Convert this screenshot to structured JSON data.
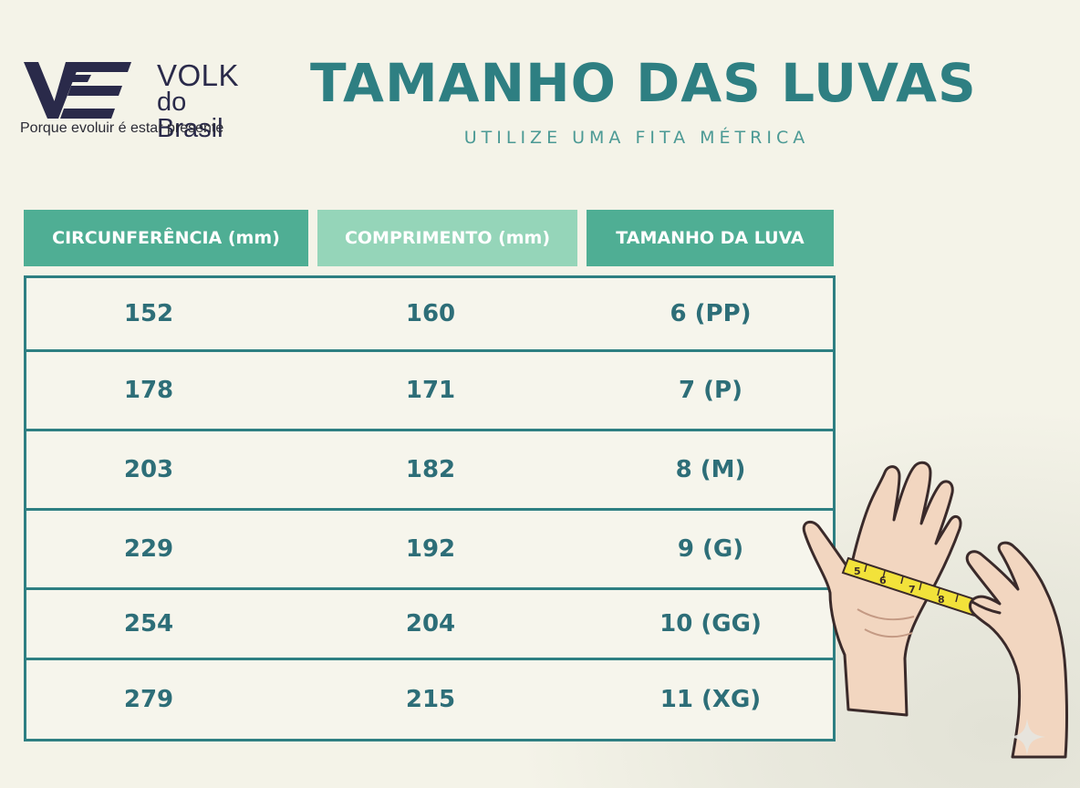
{
  "logo": {
    "brand": "VOLK",
    "sub": "do Brasil",
    "tagline": "Porque evoluir é estar presente",
    "colors": {
      "mark": "#2a2a4a"
    }
  },
  "header": {
    "title": "TAMANHO DAS LUVAS",
    "subtitle": "UTILIZE UMA FITA MÉTRICA"
  },
  "colors": {
    "title": "#2e7f82",
    "header_dark": "#4fae94",
    "header_light": "#95d5b9",
    "cell_text": "#2d6e78",
    "border": "#2e7f82",
    "background": "#f4f3e8",
    "tape": "#f2e23a"
  },
  "table": {
    "headers": [
      "CIRCUNFERÊNCIA (mm)",
      "COMPRIMENTO (mm)",
      "TAMANHO DA LUVA"
    ],
    "rows": [
      [
        "152",
        "160",
        "6 (PP)"
      ],
      [
        "178",
        "171",
        "7 (P)"
      ],
      [
        "203",
        "182",
        "8 (M)"
      ],
      [
        "229",
        "192",
        "9 (G)"
      ],
      [
        "254",
        "204",
        "10 (GG)"
      ],
      [
        "279",
        "215",
        "11 (XG)"
      ]
    ]
  },
  "illustration": {
    "tape_marks": [
      "5",
      "6",
      "7",
      "8"
    ]
  },
  "icons": [
    "volk-logo-icon",
    "hand-measuring-icon",
    "tape-measure-icon",
    "sparkle-icon"
  ]
}
